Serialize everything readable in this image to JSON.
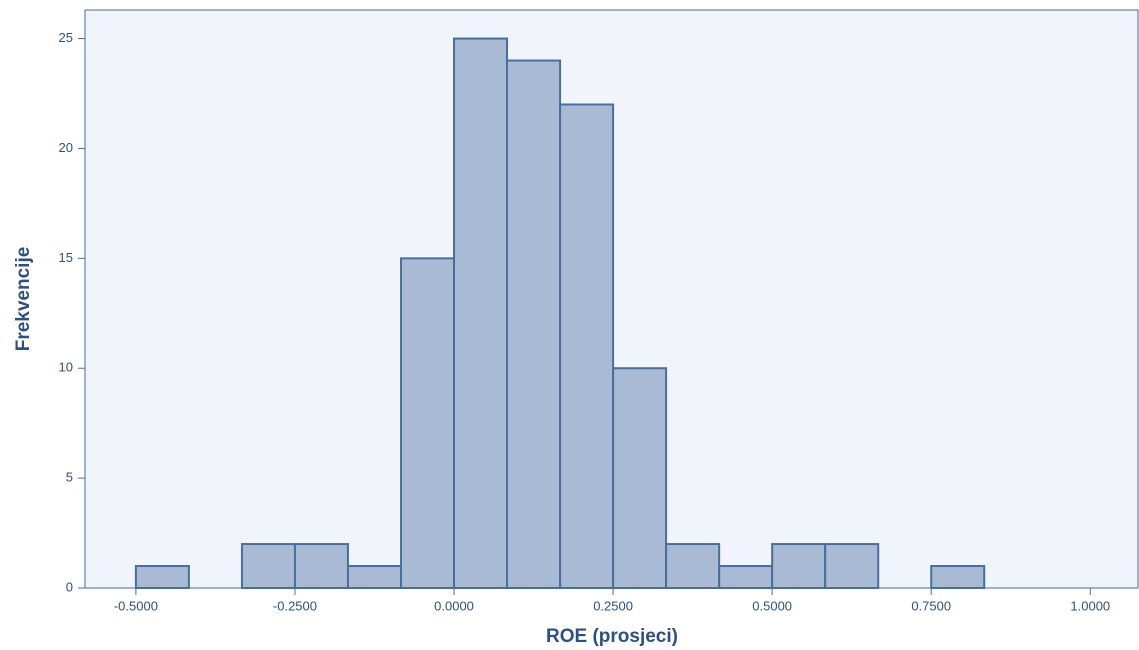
{
  "chart_data": {
    "type": "histogram",
    "x_label": "ROE (prosjeci)",
    "y_label": "Frekvencije",
    "bins": [
      -0.5,
      -0.4167,
      -0.3333,
      -0.25,
      -0.1667,
      -0.0833,
      0,
      0.0833,
      0.1667,
      0.25,
      0.3333,
      0.4167,
      0.5,
      0.5833,
      0.6667,
      0.75,
      0.8333
    ],
    "values": [
      1,
      0,
      2,
      2,
      1,
      15,
      25,
      24,
      22,
      10,
      2,
      1,
      2,
      2,
      0,
      1
    ],
    "color": "#a9bad4",
    "edge_color": "#4a6e9c",
    "xlim": [
      -0.58,
      1.075
    ],
    "ylim": [
      0,
      26.3
    ],
    "xticks": [
      {
        "value": -0.5,
        "label": "-0.5000"
      },
      {
        "value": -0.25,
        "label": "-0.2500"
      },
      {
        "value": 0,
        "label": "0.0000"
      },
      {
        "value": 0.25,
        "label": "0.2500"
      },
      {
        "value": 0.5,
        "label": "0.5000"
      },
      {
        "value": 0.75,
        "label": "0.7500"
      },
      {
        "value": 1,
        "label": "1.0000"
      }
    ],
    "yticks": [
      0,
      5,
      10,
      15,
      20,
      25
    ],
    "grid": false
  }
}
